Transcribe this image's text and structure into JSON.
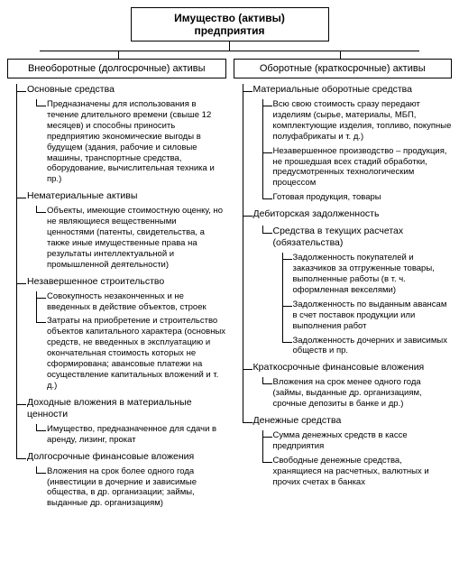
{
  "colors": {
    "border": "#000000",
    "bg": "#ffffff",
    "text": "#000000"
  },
  "fonts": {
    "family": "Arial, sans-serif",
    "root_pt": 12,
    "branch_pt": 11,
    "node_pt": 10.5,
    "desc_pt": 9.5
  },
  "diagram": {
    "type": "tree",
    "root": "Имущество (активы) предприятия",
    "branches": [
      {
        "title": "Внеоборотные (долгосрочные) активы",
        "nodes": [
          {
            "label": "Основные средства",
            "desc": [
              "Предназначены для использования в течение длительного времени (свыше 12 месяцев) и способны приносить предприятию экономические выгоды в будущем (здания, рабочие и силовые машины, транспортные средства, оборудование, вычислительная техника и пр.)"
            ]
          },
          {
            "label": "Нематериальные активы",
            "desc": [
              "Объекты, имеющие стоимостную оценку, но не являющиеся вещественными ценностями (патенты, свидетельства, а также иные имущественные права на результаты интеллектуальной и промышленной деятельности)"
            ]
          },
          {
            "label": "Незавершенное строительство",
            "desc": [
              "Совокупность незаконченных и не введенных в действие объектов, строек",
              "Затраты на приобретение и строительство объектов капитального характера (основных средств, не введенных в эксплуатацию и окончательная стоимость которых не сформирована; авансовые платежи на осуществление капитальных вложений и т. д.)"
            ]
          },
          {
            "label": "Доходные вложения в материальные ценности",
            "desc": [
              "Имущество, предназначенное для сдачи в аренду, лизинг, прокат"
            ]
          },
          {
            "label": "Долгосрочные финансовые вложения",
            "desc": [
              "Вложения на срок более одного года (инвестиции в дочерние и зависимые общества, в др. организации; займы, выданные др. организациям)"
            ]
          }
        ]
      },
      {
        "title": "Оборотные (краткосрочные) активы",
        "nodes": [
          {
            "label": "Материальные оборотные средства",
            "desc": [
              "Всю свою стоимость сразу передают изделиям (сырье, материалы, МБП, комплектующие изделия, топливо, покупные полуфабрикаты и т. д.)",
              "Незавершенное производство – продукция, не прошедшая всех стадий обработки, предусмотренных технологическим процессом",
              "Готовая продукция, товары"
            ]
          },
          {
            "label": "Дебиторская задолженность",
            "children": [
              {
                "label": "Средства в текущих расчетах (обязательства)",
                "desc": [
                  "Задолженность покупателей и заказчиков за отгруженные товары, выполненные работы (в т. ч. оформленная векселями)",
                  "Задолженность по выданным авансам в счет поставок продукции или выполнения работ",
                  "Задолженность дочерних и зависимых обществ и пр."
                ]
              }
            ]
          },
          {
            "label": "Краткосрочные финансовые вложения",
            "desc": [
              "Вложения на срок менее одного года (займы, выданные др. организациям, срочные депозиты в банке и др.)"
            ]
          },
          {
            "label": "Денежные средства",
            "desc": [
              "Сумма денежных средств в кассе предприятия",
              "Свободные денежные средства, хранящиеся на расчетных, валютных и прочих счетах в банках"
            ]
          }
        ]
      }
    ]
  }
}
